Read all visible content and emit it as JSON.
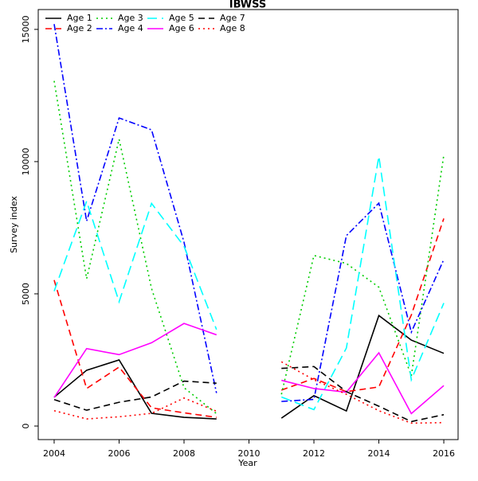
{
  "chart_data": {
    "type": "line",
    "title": "IBWSS",
    "xlabel": "Year",
    "ylabel": "Survey index",
    "x": [
      2004,
      2005,
      2006,
      2007,
      2008,
      2009,
      2010,
      2011,
      2012,
      2013,
      2014,
      2015,
      2016
    ],
    "xlim": [
      2003.51,
      2016.44
    ],
    "xticks": [
      2004,
      2006,
      2008,
      2010,
      2012,
      2014,
      2016
    ],
    "ylim": [
      -512,
      15750
    ],
    "yticks": [
      0,
      5000,
      10000,
      15000
    ],
    "legend": "upper left",
    "series": [
      {
        "name": "Age 1",
        "color": "#000000",
        "linestyle": "solid",
        "values": [
          1090,
          2110,
          2500,
          480,
          330,
          270,
          null,
          300,
          1150,
          570,
          4180,
          3250,
          2750
        ]
      },
      {
        "name": "Age 2",
        "color": "#ff0000",
        "linestyle": "dashed",
        "values": [
          5520,
          1420,
          2230,
          690,
          500,
          330,
          null,
          1360,
          1800,
          1300,
          1480,
          4200,
          7850
        ]
      },
      {
        "name": "Age 3",
        "color": "#00cd00",
        "linestyle": "dotted",
        "values": [
          13050,
          5570,
          10850,
          5200,
          1450,
          470,
          null,
          1200,
          6450,
          6150,
          5250,
          1900,
          10250
        ]
      },
      {
        "name": "Age 4",
        "color": "#0000ff",
        "linestyle": "dashdot",
        "values": [
          15200,
          7750,
          11650,
          11200,
          6950,
          1250,
          null,
          930,
          1010,
          7200,
          8430,
          3550,
          6300
        ]
      },
      {
        "name": "Age 5",
        "color": "#00ffff",
        "linestyle": "longdash",
        "values": [
          5100,
          8500,
          4700,
          8420,
          6800,
          3650,
          null,
          1100,
          620,
          2950,
          10200,
          1750,
          4650
        ]
      },
      {
        "name": "Age 6",
        "color": "#ff00ff",
        "linestyle": "solid",
        "values": [
          1080,
          2930,
          2700,
          3150,
          3880,
          3450,
          null,
          1730,
          1420,
          1280,
          2770,
          470,
          1530
        ]
      },
      {
        "name": "Age 7",
        "color": "#000000",
        "linestyle": "dashed",
        "values": [
          1000,
          600,
          900,
          1100,
          1700,
          1620,
          null,
          2180,
          2250,
          1300,
          750,
          170,
          430
        ]
      },
      {
        "name": "Age 8",
        "color": "#ff0000",
        "linestyle": "dotted",
        "values": [
          580,
          270,
          350,
          480,
          1060,
          560,
          null,
          2430,
          1750,
          1200,
          580,
          110,
          130
        ]
      }
    ]
  }
}
